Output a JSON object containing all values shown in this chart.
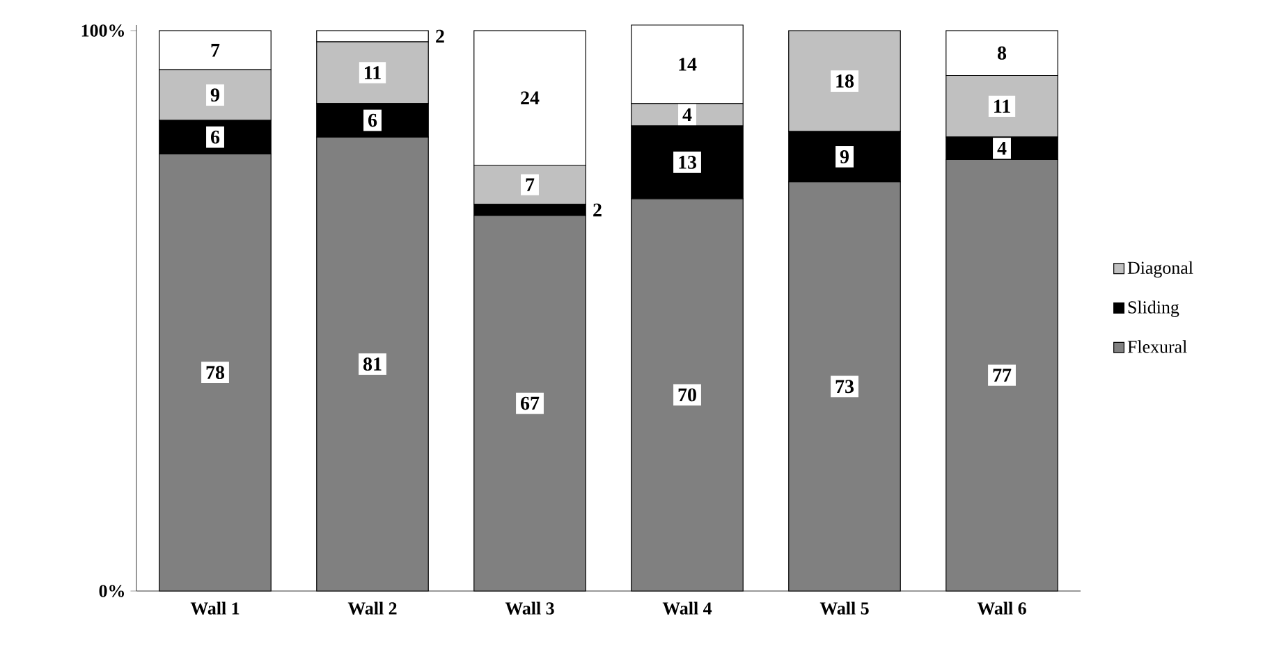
{
  "chart_data": {
    "type": "bar",
    "stacked": true,
    "categories": [
      "Wall 1",
      "Wall 2",
      "Wall 3",
      "Wall 4",
      "Wall 5",
      "Wall 6"
    ],
    "series": [
      {
        "name": "Flexural",
        "color": "#808080",
        "values": [
          78,
          81,
          67,
          70,
          73,
          77
        ]
      },
      {
        "name": "Sliding",
        "color": "#000000",
        "values": [
          6,
          6,
          2,
          13,
          9,
          4
        ]
      },
      {
        "name": "Diagonal",
        "color": "#c0c0c0",
        "values": [
          9,
          11,
          7,
          4,
          18,
          11
        ]
      },
      {
        "color": "#ffffff",
        "values": [
          7,
          2,
          24,
          14,
          null,
          8
        ]
      }
    ],
    "ylim": [
      0,
      101
    ],
    "yticks": [
      {
        "value": 0,
        "label": "0%"
      },
      {
        "value": 100,
        "label": "100%"
      }
    ],
    "data_labels": true,
    "legend": "right",
    "grid": false
  }
}
